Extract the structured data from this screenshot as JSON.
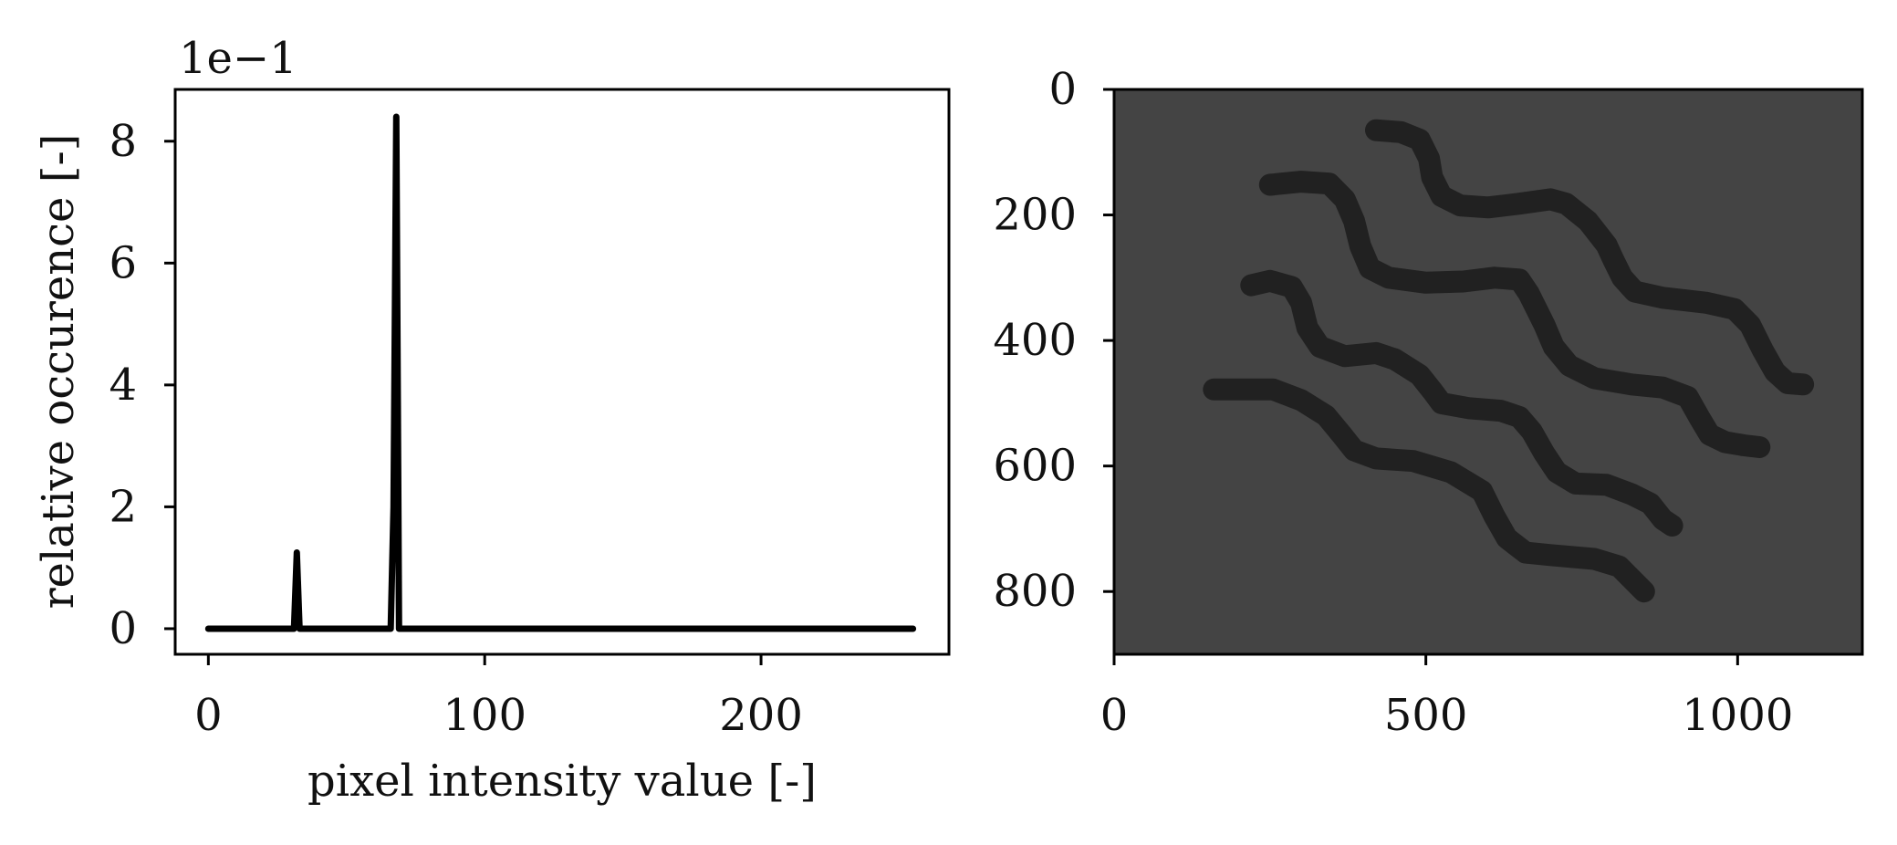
{
  "chart_data": [
    {
      "type": "line",
      "title": "",
      "xlabel": "pixel intensity value [-]",
      "ylabel": "relative occurence [-]",
      "offset_label": "1e−1",
      "xlim": [
        -12,
        268
      ],
      "ylim": [
        -0.042,
        0.885
      ],
      "xticks": [
        0,
        100,
        200
      ],
      "xtick_labels": [
        "0",
        "100",
        "200"
      ],
      "yticks": [
        0,
        0.2,
        0.4,
        0.6,
        0.8
      ],
      "ytick_labels": [
        "0",
        "2",
        "4",
        "6",
        "8"
      ],
      "grid": false,
      "legend": "none",
      "line_color": "#000000",
      "series": [
        {
          "x": [
            0,
            31,
            32,
            33,
            34,
            50,
            66,
            67,
            68,
            69,
            255
          ],
          "values": [
            0,
            0,
            0.125,
            0,
            0,
            0,
            0,
            0.2,
            0.84,
            0,
            0
          ]
        }
      ]
    },
    {
      "type": "image",
      "title": "",
      "xlim": [
        0,
        1200
      ],
      "ylim": [
        900,
        0
      ],
      "xticks": [
        0,
        500,
        1000
      ],
      "xtick_labels": [
        "0",
        "500",
        "1000"
      ],
      "yticks": [
        0,
        200,
        400,
        600,
        800
      ],
      "ytick_labels": [
        "0",
        "200",
        "400",
        "600",
        "800"
      ],
      "background_color": "#444444",
      "stroke_color": "#212121",
      "strokes": [
        [
          [
            160,
            478
          ],
          [
            220,
            478
          ],
          [
            255,
            478
          ],
          [
            300,
            495
          ],
          [
            340,
            520
          ],
          [
            365,
            550
          ],
          [
            385,
            575
          ],
          [
            420,
            588
          ],
          [
            480,
            592
          ],
          [
            540,
            610
          ],
          [
            590,
            640
          ],
          [
            610,
            680
          ],
          [
            630,
            715
          ],
          [
            660,
            738
          ],
          [
            700,
            742
          ],
          [
            770,
            748
          ],
          [
            810,
            760
          ],
          [
            835,
            785
          ],
          [
            850,
            800
          ]
        ],
        [
          [
            220,
            312
          ],
          [
            250,
            305
          ],
          [
            285,
            315
          ],
          [
            300,
            340
          ],
          [
            310,
            380
          ],
          [
            330,
            410
          ],
          [
            370,
            425
          ],
          [
            420,
            420
          ],
          [
            450,
            430
          ],
          [
            490,
            455
          ],
          [
            510,
            480
          ],
          [
            525,
            500
          ],
          [
            570,
            508
          ],
          [
            620,
            512
          ],
          [
            650,
            522
          ],
          [
            670,
            545
          ],
          [
            690,
            580
          ],
          [
            710,
            610
          ],
          [
            740,
            628
          ],
          [
            790,
            630
          ],
          [
            830,
            645
          ],
          [
            860,
            660
          ],
          [
            880,
            685
          ],
          [
            895,
            695
          ]
        ],
        [
          [
            250,
            152
          ],
          [
            300,
            147
          ],
          [
            345,
            150
          ],
          [
            370,
            175
          ],
          [
            385,
            210
          ],
          [
            395,
            250
          ],
          [
            410,
            285
          ],
          [
            440,
            300
          ],
          [
            500,
            308
          ],
          [
            560,
            306
          ],
          [
            610,
            300
          ],
          [
            650,
            303
          ],
          [
            665,
            325
          ],
          [
            690,
            375
          ],
          [
            705,
            410
          ],
          [
            730,
            440
          ],
          [
            770,
            460
          ],
          [
            830,
            470
          ],
          [
            880,
            475
          ],
          [
            920,
            490
          ],
          [
            940,
            525
          ],
          [
            955,
            550
          ],
          [
            980,
            562
          ],
          [
            1010,
            567
          ],
          [
            1035,
            570
          ]
        ],
        [
          [
            420,
            65
          ],
          [
            460,
            68
          ],
          [
            490,
            80
          ],
          [
            505,
            110
          ],
          [
            510,
            140
          ],
          [
            525,
            170
          ],
          [
            555,
            185
          ],
          [
            600,
            188
          ],
          [
            650,
            182
          ],
          [
            700,
            175
          ],
          [
            725,
            182
          ],
          [
            760,
            210
          ],
          [
            790,
            248
          ],
          [
            800,
            270
          ],
          [
            815,
            300
          ],
          [
            835,
            322
          ],
          [
            880,
            332
          ],
          [
            950,
            340
          ],
          [
            995,
            350
          ],
          [
            1020,
            375
          ],
          [
            1040,
            415
          ],
          [
            1060,
            450
          ],
          [
            1080,
            468
          ],
          [
            1105,
            470
          ]
        ]
      ]
    }
  ]
}
